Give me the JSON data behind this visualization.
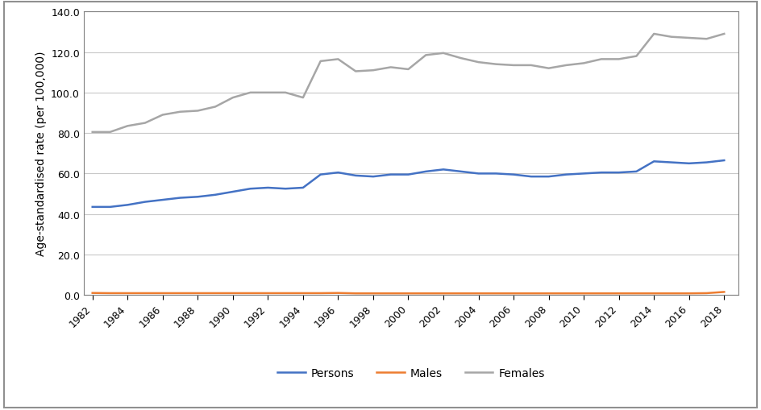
{
  "years": [
    1982,
    1983,
    1984,
    1985,
    1986,
    1987,
    1988,
    1989,
    1990,
    1991,
    1992,
    1993,
    1994,
    1995,
    1996,
    1997,
    1998,
    1999,
    2000,
    2001,
    2002,
    2003,
    2004,
    2005,
    2006,
    2007,
    2008,
    2009,
    2010,
    2011,
    2012,
    2013,
    2014,
    2015,
    2016,
    2017,
    2018
  ],
  "persons": [
    43.5,
    43.5,
    44.5,
    46.0,
    47.0,
    48.0,
    48.5,
    49.5,
    51.0,
    52.5,
    53.0,
    52.5,
    53.0,
    59.5,
    60.5,
    59.0,
    58.5,
    59.5,
    59.5,
    61.0,
    62.0,
    61.0,
    60.0,
    60.0,
    59.5,
    58.5,
    58.5,
    59.5,
    60.0,
    60.5,
    60.5,
    61.0,
    66.0,
    65.5,
    65.0,
    65.5,
    66.5
  ],
  "males": [
    1.0,
    0.9,
    0.9,
    0.9,
    0.9,
    0.9,
    0.9,
    0.9,
    0.9,
    0.9,
    0.9,
    0.9,
    0.9,
    0.9,
    1.0,
    0.8,
    0.8,
    0.8,
    0.8,
    0.8,
    0.8,
    0.8,
    0.8,
    0.8,
    0.8,
    0.8,
    0.8,
    0.8,
    0.8,
    0.8,
    0.8,
    0.8,
    0.8,
    0.8,
    0.8,
    0.9,
    1.5
  ],
  "females": [
    80.5,
    80.5,
    83.5,
    85.0,
    89.0,
    90.5,
    91.0,
    93.0,
    97.5,
    100.0,
    100.0,
    100.0,
    97.5,
    115.5,
    116.5,
    110.5,
    111.0,
    112.5,
    111.5,
    118.5,
    119.5,
    117.0,
    115.0,
    114.0,
    113.5,
    113.5,
    112.0,
    113.5,
    114.5,
    116.5,
    116.5,
    118.0,
    129.0,
    127.5,
    127.0,
    126.5,
    129.0
  ],
  "xtick_years": [
    1982,
    1984,
    1986,
    1988,
    1990,
    1992,
    1994,
    1996,
    1998,
    2000,
    2002,
    2004,
    2006,
    2008,
    2010,
    2012,
    2014,
    2016,
    2018
  ],
  "persons_color": "#4472C4",
  "males_color": "#ED7D31",
  "females_color": "#A6A6A6",
  "ylabel": "Age-standardised rate (per 100,000)",
  "ylim": [
    0,
    140
  ],
  "yticks": [
    0.0,
    20.0,
    40.0,
    60.0,
    80.0,
    100.0,
    120.0,
    140.0
  ],
  "legend_labels": [
    "Persons",
    "Males",
    "Females"
  ],
  "background_color": "#FFFFFF",
  "grid_color": "#C8C8C8",
  "line_width": 1.8,
  "outer_border_color": "#808080"
}
